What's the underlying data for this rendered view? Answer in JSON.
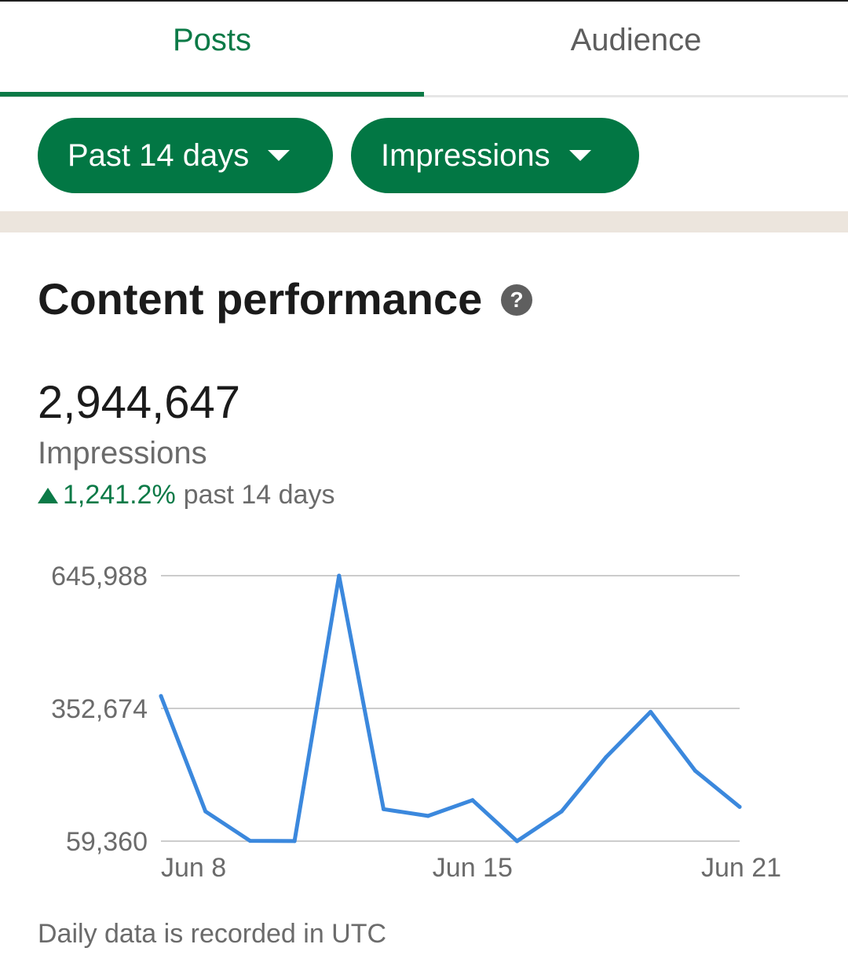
{
  "tabs": [
    {
      "label": "Posts",
      "active": true
    },
    {
      "label": "Audience",
      "active": false
    }
  ],
  "filters": {
    "range_label": "Past 14 days",
    "metric_label": "Impressions"
  },
  "colors": {
    "brand_green": "#027744",
    "active_tab": "#0b7a47",
    "line": "#3b88dd",
    "gridline": "#cccccc",
    "band": "#ece5dd"
  },
  "section": {
    "title": "Content performance",
    "help_icon": "question-circle-icon"
  },
  "summary": {
    "total": "2,944,647",
    "metric": "Impressions",
    "change_pct": "1,241.2%",
    "change_period": "past 14 days",
    "trend_icon": "triangle-up-icon"
  },
  "chart_data": {
    "type": "line",
    "series": [
      {
        "values": [
          380000,
          125000,
          60000,
          59500,
          645988,
          130000,
          115000,
          150000,
          59360,
          125000,
          245000,
          345000,
          215000,
          135000
        ]
      }
    ],
    "x": [
      "Jun 8",
      "Jun 9",
      "Jun 10",
      "Jun 11",
      "Jun 12",
      "Jun 13",
      "Jun 14",
      "Jun 15",
      "Jun 16",
      "Jun 17",
      "Jun 18",
      "Jun 19",
      "Jun 20",
      "Jun 21"
    ],
    "x_tick_labels": [
      "Jun 8",
      "Jun 15",
      "Jun 21"
    ],
    "y_tick_labels": [
      "645,988",
      "352,674",
      "59,360"
    ],
    "y_ticks": [
      645988,
      352674,
      59360
    ],
    "ylim": [
      59360,
      645988
    ],
    "grid": true
  },
  "footnote": "Daily data is recorded in UTC"
}
